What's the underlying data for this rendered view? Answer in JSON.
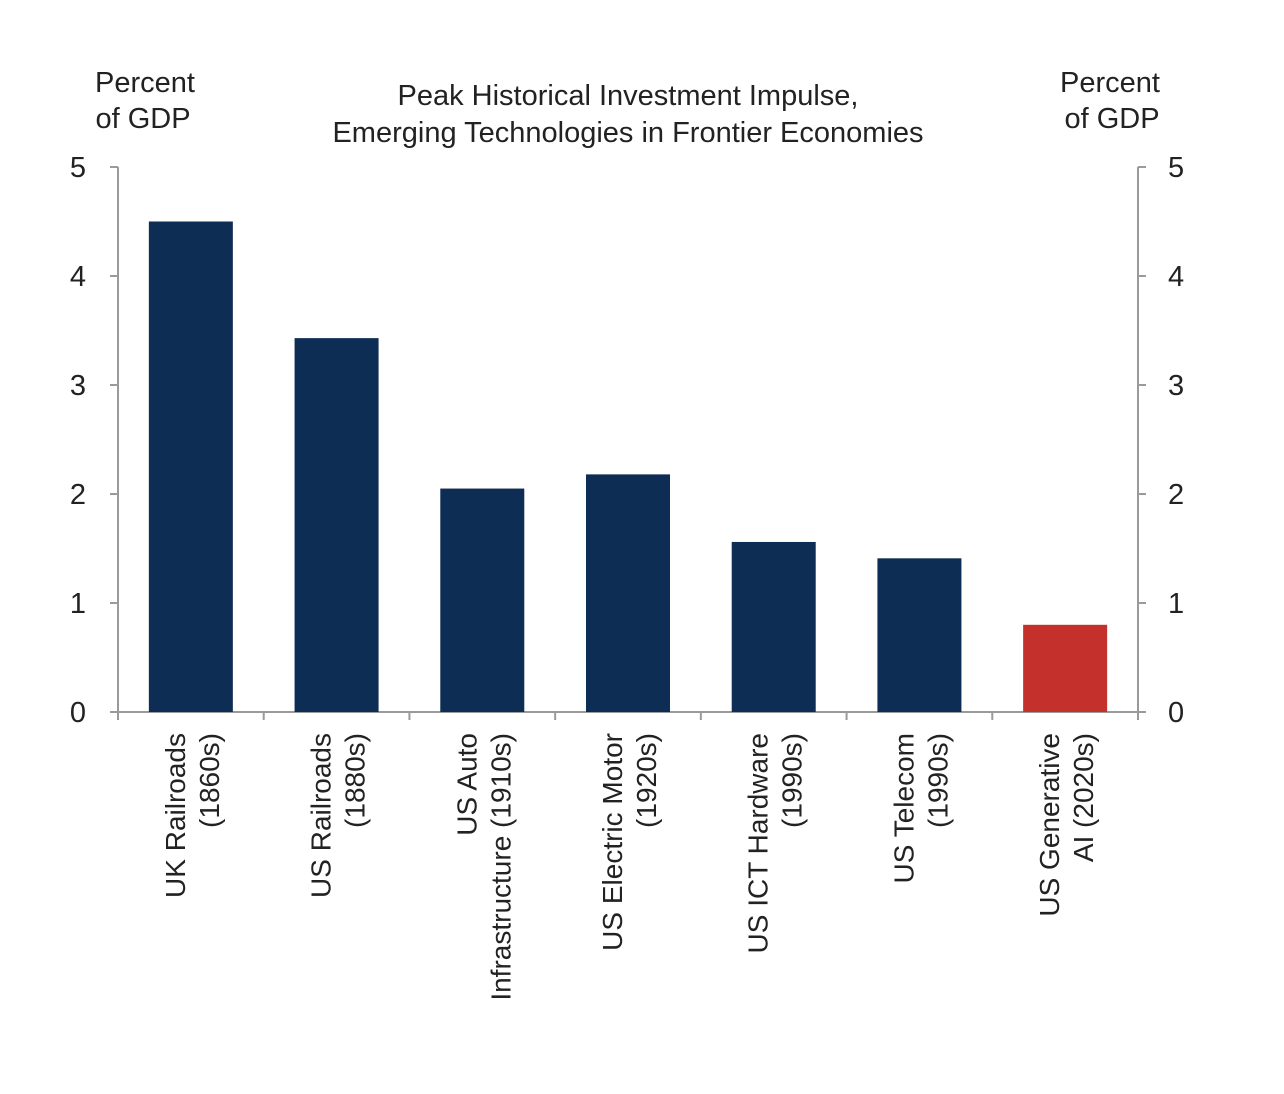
{
  "chart_data": {
    "type": "bar",
    "title": [
      "Peak Historical Investment  Impulse,",
      "Emerging  Technologies  in Frontier Economies"
    ],
    "ylabel_left": [
      "Percent",
      "of GDP"
    ],
    "ylabel_right": [
      "Percent",
      "of GDP"
    ],
    "ylim": [
      0,
      5
    ],
    "yticks": [
      "0",
      "1",
      "2",
      "3",
      "4",
      "5"
    ],
    "grid": false,
    "categories": [
      [
        "UK Railroads",
        "(1860s)"
      ],
      [
        "US Railroads",
        "(1880s)"
      ],
      [
        "US Auto",
        "Infrastructure (1910s)"
      ],
      [
        "US Electric Motor",
        "(1920s)"
      ],
      [
        "US ICT Hardware",
        "(1990s)"
      ],
      [
        "US Telecom",
        "(1990s)"
      ],
      [
        "US Generative",
        "AI (2020s)"
      ]
    ],
    "values": [
      4.5,
      3.43,
      2.05,
      2.18,
      1.56,
      1.41,
      0.8
    ],
    "colors": [
      "#0d2d54",
      "#0d2d54",
      "#0d2d54",
      "#0d2d54",
      "#0d2d54",
      "#0d2d54",
      "#c4302b"
    ]
  }
}
